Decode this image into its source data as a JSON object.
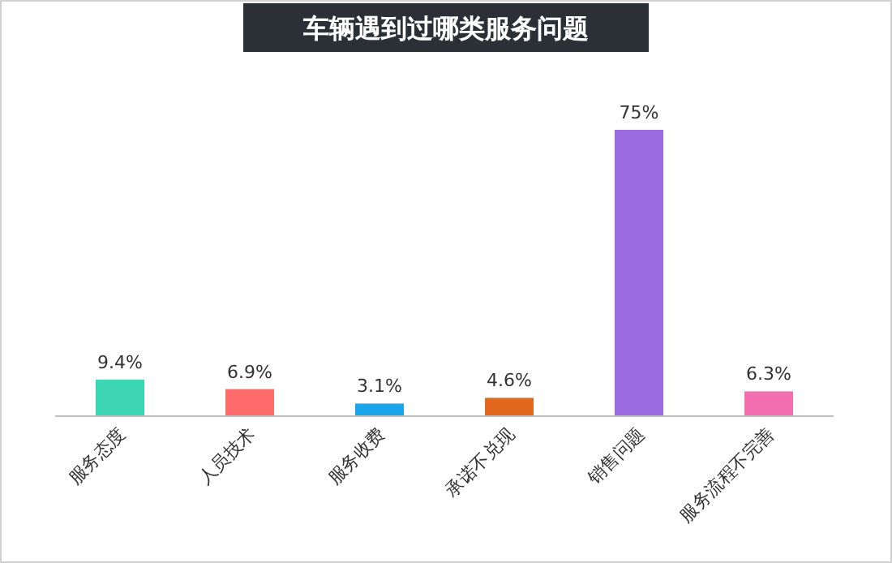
{
  "chart_data": {
    "type": "bar",
    "title": "车辆遇到过哪类服务问题",
    "categories": [
      "服务态度",
      "人员技术",
      "服务收费",
      "承诺不兑现",
      "销售问题",
      "服务流程不完善"
    ],
    "values": [
      9.4,
      6.9,
      3.1,
      4.6,
      75,
      6.3
    ],
    "value_labels": [
      "9.4%",
      "6.9%",
      "3.1%",
      "4.6%",
      "75%",
      "6.3%"
    ],
    "colors": [
      "#3dd6b5",
      "#fd6b6b",
      "#1aa6e8",
      "#e0691f",
      "#9b6be0",
      "#f46fb0"
    ]
  }
}
